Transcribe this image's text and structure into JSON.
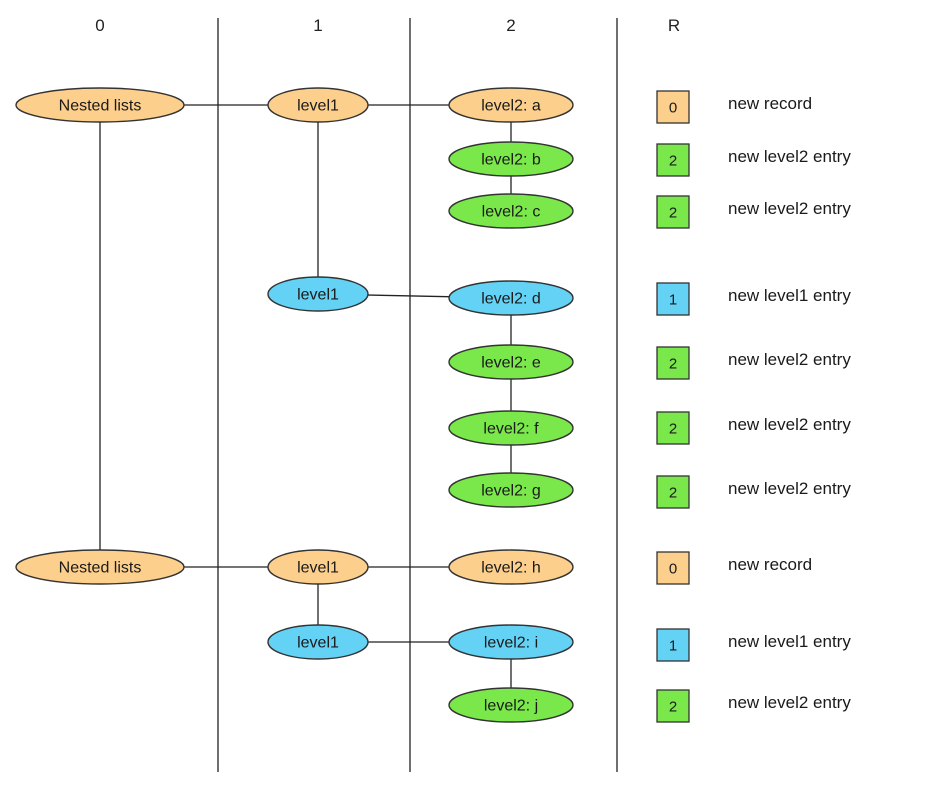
{
  "columns": [
    "0",
    "1",
    "2",
    "R"
  ],
  "colors": {
    "orange": "#fdcf8c",
    "green": "#7ae84a",
    "blue": "#63d2f5",
    "stroke": "#333333",
    "line": "#222222"
  },
  "nodes": {
    "root_1": {
      "label": "Nested lists",
      "color": "orange"
    },
    "root_2": {
      "label": "Nested lists",
      "color": "orange"
    },
    "l1_a": {
      "label": "level1",
      "color": "orange"
    },
    "l1_b": {
      "label": "level1",
      "color": "blue"
    },
    "l1_c": {
      "label": "level1",
      "color": "orange"
    },
    "l1_d": {
      "label": "level1",
      "color": "blue"
    },
    "l2_a": {
      "label": "level2: a",
      "color": "orange"
    },
    "l2_b": {
      "label": "level2: b",
      "color": "green"
    },
    "l2_c": {
      "label": "level2: c",
      "color": "green"
    },
    "l2_d": {
      "label": "level2: d",
      "color": "blue"
    },
    "l2_e": {
      "label": "level2: e",
      "color": "green"
    },
    "l2_f": {
      "label": "level2: f",
      "color": "green"
    },
    "l2_g": {
      "label": "level2: g",
      "color": "green"
    },
    "l2_h": {
      "label": "level2: h",
      "color": "orange"
    },
    "l2_i": {
      "label": "level2: i",
      "color": "blue"
    },
    "l2_j": {
      "label": "level2: j",
      "color": "green"
    }
  },
  "edges": [
    [
      "root_1",
      "l1_a"
    ],
    [
      "l1_a",
      "l2_a"
    ],
    [
      "l2_a",
      "l2_b"
    ],
    [
      "l2_b",
      "l2_c"
    ],
    [
      "l1_a",
      "l1_b"
    ],
    [
      "l1_b",
      "l2_d"
    ],
    [
      "l2_d",
      "l2_e"
    ],
    [
      "l2_e",
      "l2_f"
    ],
    [
      "l2_f",
      "l2_g"
    ],
    [
      "root_1",
      "root_2"
    ],
    [
      "root_2",
      "l1_c"
    ],
    [
      "l1_c",
      "l2_h"
    ],
    [
      "l1_c",
      "l1_d"
    ],
    [
      "l1_d",
      "l2_i"
    ],
    [
      "l2_i",
      "l2_j"
    ]
  ],
  "repetition": [
    {
      "value": "0",
      "color": "orange",
      "description": "new record"
    },
    {
      "value": "2",
      "color": "green",
      "description": "new level2 entry"
    },
    {
      "value": "2",
      "color": "green",
      "description": "new level2 entry"
    },
    {
      "value": "1",
      "color": "blue",
      "description": "new level1 entry"
    },
    {
      "value": "2",
      "color": "green",
      "description": "new level2 entry"
    },
    {
      "value": "2",
      "color": "green",
      "description": "new level2 entry"
    },
    {
      "value": "2",
      "color": "green",
      "description": "new level2 entry"
    },
    {
      "value": "0",
      "color": "orange",
      "description": "new record"
    },
    {
      "value": "1",
      "color": "blue",
      "description": "new level1 entry"
    },
    {
      "value": "2",
      "color": "green",
      "description": "new level2 entry"
    }
  ]
}
